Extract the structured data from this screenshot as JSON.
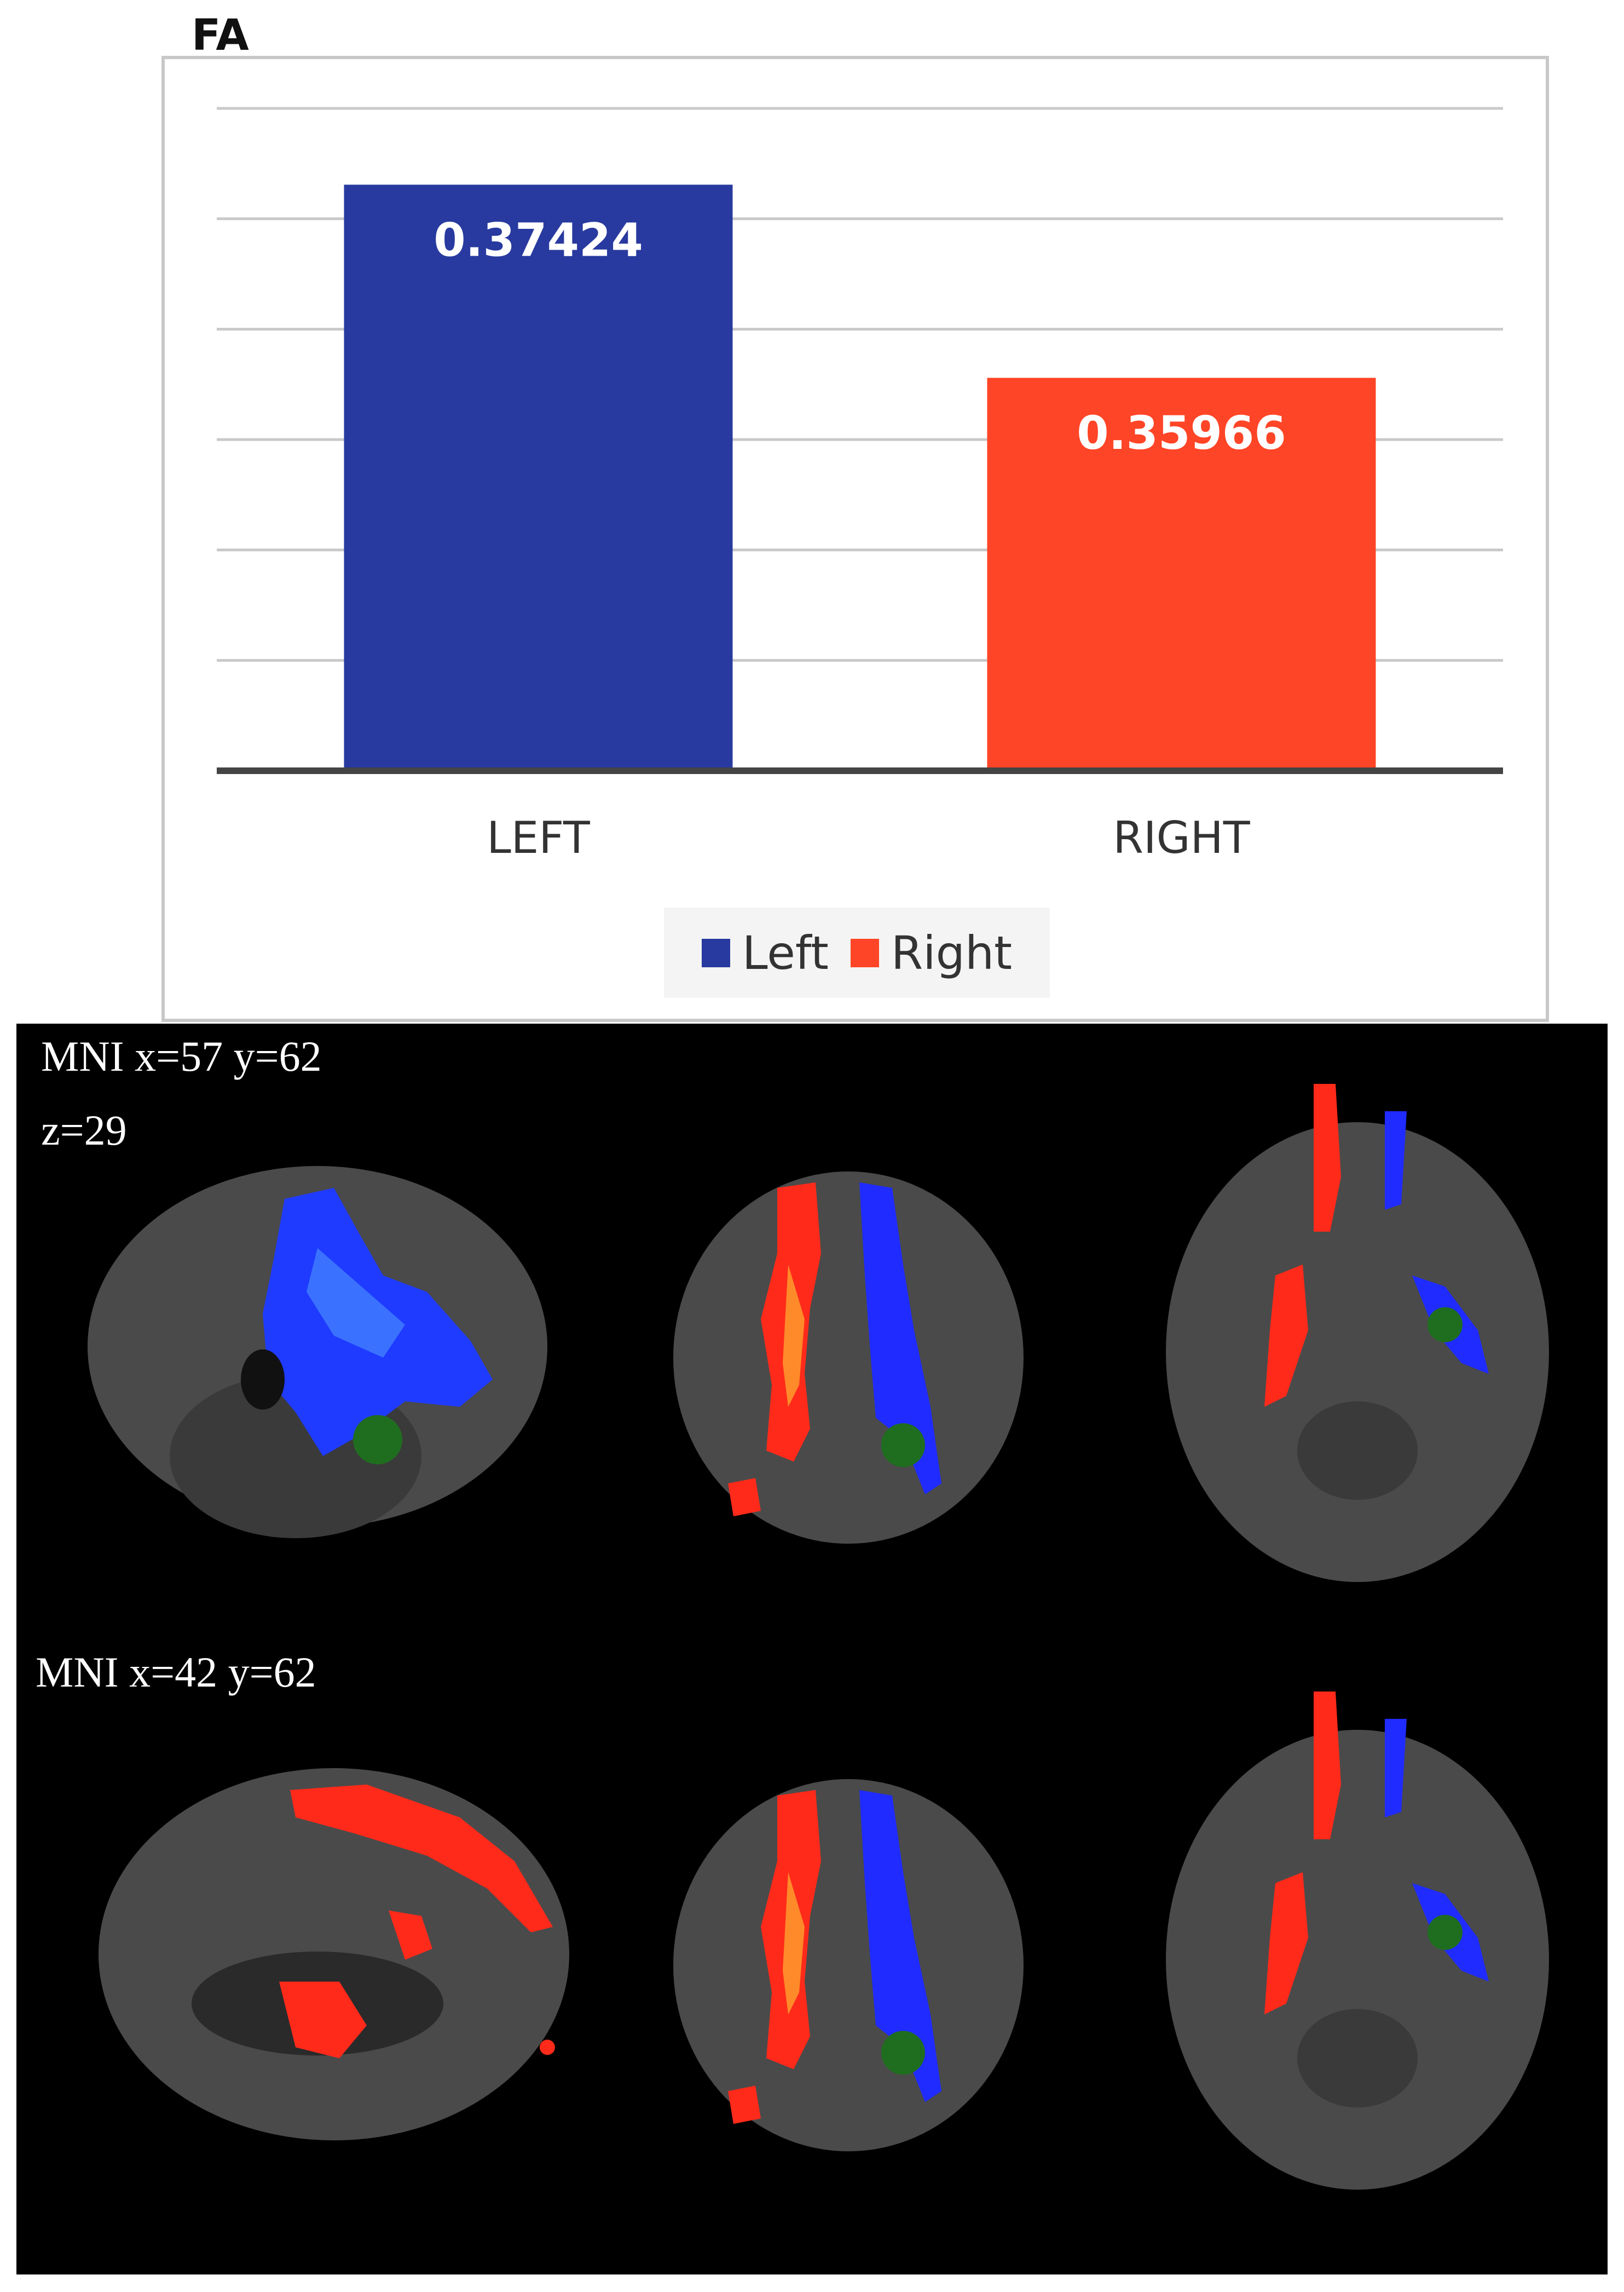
{
  "chart_data": {
    "type": "bar",
    "title": "FA",
    "categories": [
      "LEFT",
      "RIGHT"
    ],
    "values": [
      0.37424,
      0.35966
    ],
    "value_labels": [
      "0.37424",
      "0.35966"
    ],
    "bar_colors": [
      "#283a9f",
      "#ff4527"
    ],
    "series_legend": [
      {
        "name": "Left",
        "color": "#283a9f"
      },
      {
        "name": "Right",
        "color": "#ff4527"
      }
    ],
    "ylim": [
      0.33,
      0.38
    ],
    "yticks": [
      0.33,
      0.335,
      0.34,
      0.345,
      0.35,
      0.355,
      0.36,
      0.365,
      0.37,
      0.375,
      0.38
    ],
    "grid": true,
    "legend_position": "bottom"
  },
  "brain_panel": {
    "row1": {
      "line1": "MNI   x=57   y=62",
      "line2": "z=29"
    },
    "row2": {
      "line1": "MNI    x=42    y=62"
    }
  }
}
